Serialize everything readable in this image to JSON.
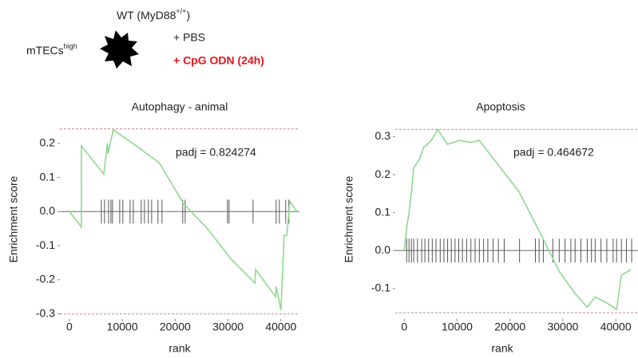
{
  "header": {
    "strain": "WT (MyD88",
    "strain_sup": "+/+",
    "strain_end": ")",
    "cells": "mTECs",
    "cells_sup": "high",
    "treat1": "+ PBS",
    "treat2": "+ CpG ODN (24h)"
  },
  "chart_data": [
    {
      "type": "line",
      "title": "Autophagy - animal",
      "x_label": "rank",
      "y_label": "Enrichment score",
      "annotation": "padj = 0.824274",
      "color": "#8fd88f",
      "hit_color": "#555555",
      "es_line_color": "#d9a0a8",
      "x": [
        0,
        2264,
        2264,
        6500,
        7200,
        7300,
        8300,
        12000,
        17000,
        21600,
        26100,
        30600,
        35100,
        35200,
        39000,
        39100,
        40000,
        40600,
        41100,
        41700,
        43000
      ],
      "values": [
        0,
        -0.045,
        0.193,
        0.11,
        0.2,
        0.17,
        0.24,
        0.2,
        0.143,
        0.023,
        -0.05,
        -0.14,
        -0.21,
        -0.17,
        -0.25,
        -0.22,
        -0.289,
        -0.07,
        -0.07,
        0.03,
        0
      ],
      "hits": [
        2264,
        6040,
        6640,
        7400,
        7850,
        8150,
        9510,
        10110,
        11470,
        12080,
        13580,
        14190,
        14940,
        15550,
        16750,
        17510,
        21430,
        21890,
        29890,
        30190,
        34720,
        39100,
        39700,
        40900,
        41500
      ],
      "es_max": 0.243,
      "es_min": -0.3,
      "xlim": [
        -1800,
        43500
      ],
      "ylim": [
        -0.315,
        0.27
      ],
      "xticks": [
        0,
        10000,
        20000,
        30000,
        40000
      ],
      "yticks": [
        -0.3,
        -0.2,
        -0.1,
        {
          "value": 0,
          "label": "0.0"
        },
        0.1,
        0.2
      ]
    },
    {
      "type": "line",
      "title": "Apoptosis",
      "x_label": "rank",
      "y_label": "Enrichment score",
      "annotation": "padj = 0.464672",
      "color": "#8fd88f",
      "hit_color": "#555555",
      "es_line_color": "#d9a0a8",
      "x": [
        0,
        450,
        900,
        1360,
        1800,
        2870,
        3600,
        5100,
        6340,
        8150,
        10400,
        12680,
        14200,
        21700,
        26300,
        29300,
        32300,
        34600,
        36100,
        38300,
        40150,
        41060,
        42870
      ],
      "values": [
        0,
        0.06,
        0.1,
        0.155,
        0.218,
        0.24,
        0.27,
        0.29,
        0.319,
        0.28,
        0.29,
        0.285,
        0.29,
        0.155,
        0.03,
        -0.055,
        -0.113,
        -0.149,
        -0.122,
        -0.138,
        -0.155,
        -0.065,
        -0.05
      ],
      "hits": [
        450,
        900,
        1360,
        1800,
        2500,
        3300,
        3900,
        4600,
        5300,
        6000,
        6800,
        7500,
        8200,
        8900,
        9600,
        10300,
        11000,
        11800,
        12600,
        13400,
        14200,
        15000,
        15800,
        16800,
        17800,
        18900,
        21800,
        24800,
        25500,
        26300,
        28100,
        29300,
        30400,
        31500,
        32300,
        33400,
        34600,
        35400,
        36100,
        37200,
        38300,
        39500,
        40150,
        41060,
        42000,
        43000
      ],
      "es_max": 0.319,
      "es_min": -0.164,
      "xlim": [
        -1700,
        44200
      ],
      "ylim": [
        -0.18,
        0.345
      ],
      "xticks": [
        0,
        10000,
        20000,
        30000,
        40000
      ],
      "yticks": [
        -0.1,
        {
          "value": 0,
          "label": "0.0"
        },
        0.1,
        0.2,
        0.3
      ]
    }
  ]
}
